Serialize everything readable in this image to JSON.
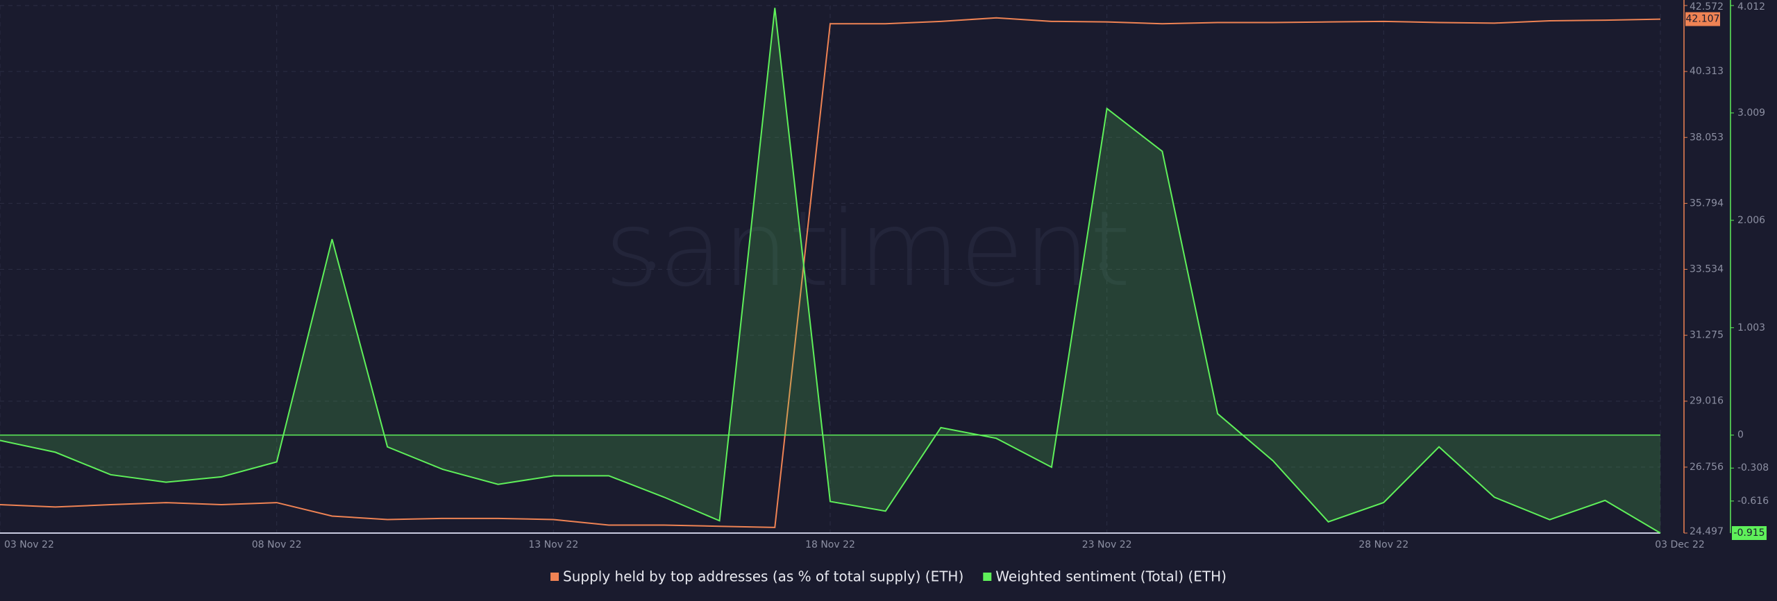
{
  "chart_data": {
    "type": "line",
    "watermark": "santiment",
    "categories": [
      "03 Nov 22",
      null,
      null,
      null,
      null,
      "08 Nov 22",
      null,
      null,
      null,
      null,
      "13 Nov 22",
      null,
      null,
      null,
      null,
      "18 Nov 22",
      null,
      null,
      null,
      null,
      "23 Nov 22",
      null,
      null,
      null,
      null,
      "28 Nov 22",
      null,
      null,
      null,
      null,
      "03 Dec 22"
    ],
    "series": [
      {
        "name": "Supply held by top addresses (as % of total supply) (ETH)",
        "color": "#ef8354",
        "axis": "y",
        "values": [
          25.47,
          25.39,
          25.47,
          25.54,
          25.47,
          25.54,
          25.08,
          24.96,
          25.0,
          25.0,
          24.96,
          24.77,
          24.77,
          24.73,
          24.69,
          41.95,
          41.95,
          42.03,
          42.15,
          42.03,
          42.01,
          41.95,
          41.99,
          41.99,
          42.01,
          42.03,
          41.99,
          41.97,
          42.05,
          42.07,
          42.107
        ]
      },
      {
        "name": "Weighted sentiment (Total) (ETH)",
        "color": "#5ff05a",
        "axis": "y2",
        "values": [
          -0.05,
          -0.16,
          -0.37,
          -0.44,
          -0.39,
          -0.25,
          1.83,
          -0.11,
          -0.32,
          -0.46,
          -0.38,
          -0.38,
          -0.58,
          -0.8,
          3.99,
          -0.62,
          -0.71,
          0.07,
          -0.03,
          -0.3,
          3.05,
          2.65,
          0.2,
          -0.24,
          -0.81,
          -0.63,
          -0.11,
          -0.58,
          -0.79,
          -0.61,
          -0.915
        ]
      }
    ],
    "ylim": [
      24.497,
      42.572
    ],
    "yticks": [
      24.497,
      26.756,
      29.016,
      31.275,
      33.534,
      35.794,
      38.053,
      40.313,
      42.572
    ],
    "y2lim": [
      -0.915,
      4.012
    ],
    "y2ticks": [
      -0.616,
      -0.308,
      0,
      1.003,
      2.006,
      3.009,
      4.012
    ],
    "grid": true,
    "legend": "bottom"
  }
}
